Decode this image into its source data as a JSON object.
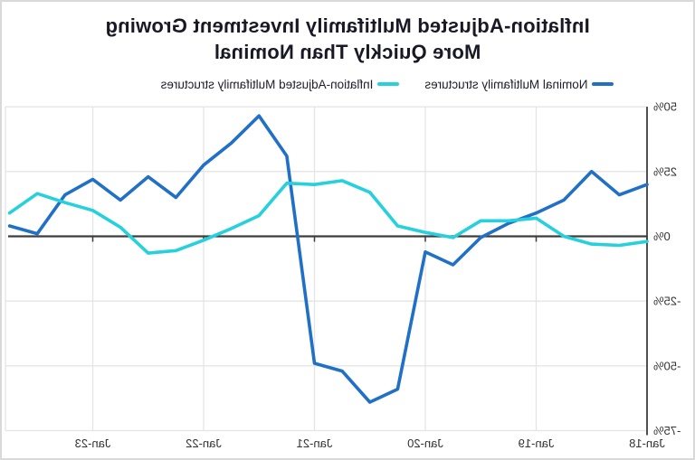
{
  "title": {
    "line1": "Inflation-Adjusted Multifamily Investment Growing",
    "line2": "More Quickly Than Nominal"
  },
  "legend": {
    "items": [
      {
        "label": "Nominal Multifamily structures",
        "color": "#2070C8"
      },
      {
        "label": "Inflation-Adjusted Multifamily structures",
        "color": "#26D0DC"
      }
    ]
  },
  "colors": {
    "nominal_line": "#2070C8",
    "inflation_adjusted_line": "#26D0DC",
    "zero_axis": "#3d3d3d",
    "gridline": "#e4e4e4",
    "title_text": "#191926",
    "axis_label_text": "#333333",
    "background": "#ffffff",
    "frame_border": "#d9d9d9"
  },
  "chart_data": {
    "type": "line",
    "title": "Inflation-Adjusted Multifamily Investment Growing More Quickly Than Nominal",
    "x": [
      "Jan-18",
      "Apr-18",
      "Jul-18",
      "Oct-18",
      "Jan-19",
      "Apr-19",
      "Jul-19",
      "Oct-19",
      "Jan-20",
      "Apr-20",
      "Jul-20",
      "Oct-20",
      "Jan-21",
      "Apr-21",
      "Jul-21",
      "Oct-21",
      "Jan-22",
      "Apr-22",
      "Jul-22",
      "Oct-22",
      "Jan-23",
      "Apr-23",
      "Jul-23",
      "Oct-23"
    ],
    "series": [
      {
        "name": "Nominal Multifamily structures",
        "color": "#2070C8",
        "values": [
          20,
          16,
          25,
          14,
          9,
          5,
          -0.5,
          -11,
          -6,
          -59,
          -64,
          -52,
          -49,
          31,
          46.5,
          36,
          27.5,
          15,
          23,
          14,
          22,
          16,
          1,
          4
        ]
      },
      {
        "name": "Inflation-Adjusted Multifamily structures",
        "color": "#26D0DC",
        "values": [
          -2,
          -3.5,
          -3,
          0,
          7,
          6,
          6,
          -0.5,
          1.5,
          4,
          17,
          21.5,
          20,
          20.5,
          8,
          3,
          -1.5,
          -5.5,
          -6.5,
          3.5,
          10,
          13,
          16.5,
          9
        ]
      }
    ],
    "xlabel": "",
    "ylabel": "",
    "ylim": [
      -75,
      50
    ],
    "yticks": [
      50,
      25,
      0,
      -25,
      -50,
      -75
    ],
    "ytick_labels": [
      "50%",
      "25%",
      "0%",
      "-25%",
      "-50%",
      "-75%"
    ],
    "xtick_labels": [
      "Jan-18",
      "Jan-19",
      "Jan-20",
      "Jan-21",
      "Jan-22",
      "Jan-23"
    ],
    "grid": true,
    "legend_position": "top-center",
    "y_axis_units": "percent",
    "mirrored_horizontally": true
  }
}
